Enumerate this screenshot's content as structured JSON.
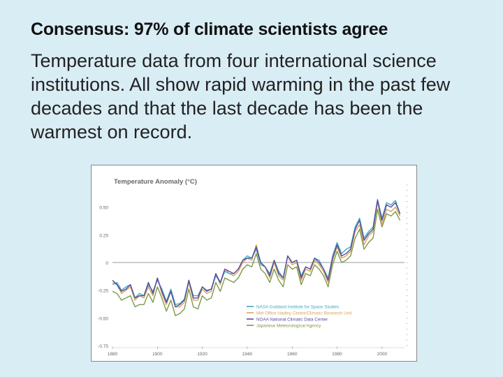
{
  "slide": {
    "title": "Consensus: 97% of climate scientists agree",
    "body": "Temperature data from four international science institutions. All show rapid warming in the past few decades and that the last decade has been the warmest on record."
  },
  "colors": {
    "background": "#d9edf5",
    "nasa": "#3fa9c4",
    "hadley": "#d9a35a",
    "noaa": "#5b4a9e",
    "jma": "#7a9a4a"
  },
  "chart_data": {
    "type": "line",
    "title": "Temperature Anomaly (°C)",
    "xlabel": "",
    "ylabel": "",
    "xlim": [
      1880,
      2010
    ],
    "ylim": [
      -0.75,
      0.75
    ],
    "xticks": [
      1880,
      1900,
      1920,
      1940,
      1960,
      1980,
      2000
    ],
    "yticks": [
      0.5,
      0.25,
      0,
      -0.25,
      -0.5,
      -0.75
    ],
    "ytick_labels": [
      "0.50",
      "0.25",
      "0",
      "-0.25",
      "-0.50",
      "-0.75"
    ],
    "legend_position": "bottom-right",
    "x": [
      1880,
      1882,
      1884,
      1886,
      1888,
      1890,
      1892,
      1894,
      1896,
      1898,
      1900,
      1902,
      1904,
      1906,
      1908,
      1910,
      1912,
      1914,
      1916,
      1918,
      1920,
      1922,
      1924,
      1926,
      1928,
      1930,
      1932,
      1934,
      1936,
      1938,
      1940,
      1942,
      1944,
      1946,
      1948,
      1950,
      1952,
      1954,
      1956,
      1958,
      1960,
      1962,
      1964,
      1966,
      1968,
      1970,
      1972,
      1974,
      1976,
      1978,
      1980,
      1982,
      1984,
      1986,
      1988,
      1990,
      1992,
      1994,
      1996,
      1998,
      2000,
      2002,
      2004,
      2006,
      2008
    ],
    "series": [
      {
        "name": "NASA Goddard Institute for Space Studies",
        "values": [
          -0.2,
          -0.18,
          -0.25,
          -0.22,
          -0.2,
          -0.32,
          -0.28,
          -0.3,
          -0.2,
          -0.26,
          -0.16,
          -0.24,
          -0.35,
          -0.24,
          -0.38,
          -0.37,
          -0.33,
          -0.16,
          -0.3,
          -0.3,
          -0.22,
          -0.25,
          -0.24,
          -0.12,
          -0.18,
          -0.08,
          -0.1,
          -0.1,
          -0.06,
          0.02,
          0.06,
          0.04,
          0.12,
          -0.02,
          -0.04,
          -0.1,
          0.02,
          -0.08,
          -0.14,
          0.06,
          0.0,
          0.02,
          -0.12,
          -0.04,
          -0.06,
          0.04,
          0.02,
          -0.06,
          -0.14,
          0.06,
          0.18,
          0.08,
          0.12,
          0.14,
          0.32,
          0.4,
          0.22,
          0.28,
          0.32,
          0.57,
          0.4,
          0.54,
          0.52,
          0.56,
          0.44
        ]
      },
      {
        "name": "Met Office Hadley Centre/Climatic Research Unit",
        "values": [
          -0.18,
          -0.2,
          -0.28,
          -0.25,
          -0.22,
          -0.34,
          -0.3,
          -0.32,
          -0.22,
          -0.3,
          -0.14,
          -0.28,
          -0.38,
          -0.26,
          -0.4,
          -0.4,
          -0.36,
          -0.18,
          -0.34,
          -0.34,
          -0.24,
          -0.28,
          -0.26,
          -0.1,
          -0.2,
          -0.06,
          -0.1,
          -0.12,
          -0.08,
          0.0,
          0.04,
          0.02,
          0.16,
          0.0,
          -0.04,
          -0.14,
          0.0,
          -0.12,
          -0.16,
          0.06,
          -0.02,
          0.0,
          -0.16,
          -0.06,
          -0.08,
          0.02,
          -0.02,
          -0.08,
          -0.18,
          0.02,
          0.14,
          0.04,
          0.06,
          0.1,
          0.28,
          0.34,
          0.16,
          0.24,
          0.28,
          0.55,
          0.34,
          0.48,
          0.46,
          0.5,
          0.42
        ]
      },
      {
        "name": "NOAA National Climatic Data Center",
        "values": [
          -0.16,
          -0.2,
          -0.26,
          -0.24,
          -0.2,
          -0.32,
          -0.3,
          -0.3,
          -0.18,
          -0.28,
          -0.14,
          -0.26,
          -0.36,
          -0.26,
          -0.4,
          -0.38,
          -0.34,
          -0.16,
          -0.32,
          -0.32,
          -0.22,
          -0.26,
          -0.24,
          -0.1,
          -0.18,
          -0.06,
          -0.08,
          -0.1,
          -0.06,
          0.02,
          0.04,
          0.04,
          0.14,
          0.0,
          -0.04,
          -0.12,
          0.02,
          -0.1,
          -0.14,
          0.06,
          0.0,
          0.02,
          -0.14,
          -0.04,
          -0.06,
          0.04,
          0.0,
          -0.06,
          -0.16,
          0.04,
          0.16,
          0.06,
          0.08,
          0.12,
          0.3,
          0.38,
          0.2,
          0.26,
          0.3,
          0.56,
          0.38,
          0.52,
          0.5,
          0.54,
          0.44
        ]
      },
      {
        "name": "Japanese Meteorological Agency",
        "values": [
          -0.26,
          -0.28,
          -0.34,
          -0.32,
          -0.3,
          -0.4,
          -0.38,
          -0.38,
          -0.28,
          -0.36,
          -0.22,
          -0.32,
          -0.44,
          -0.34,
          -0.48,
          -0.46,
          -0.42,
          -0.24,
          -0.4,
          -0.42,
          -0.3,
          -0.34,
          -0.32,
          -0.18,
          -0.26,
          -0.14,
          -0.16,
          -0.18,
          -0.14,
          -0.06,
          -0.02,
          -0.04,
          0.08,
          -0.06,
          -0.1,
          -0.18,
          -0.06,
          -0.16,
          -0.22,
          -0.02,
          -0.06,
          -0.04,
          -0.2,
          -0.1,
          -0.12,
          -0.02,
          -0.06,
          -0.12,
          -0.22,
          -0.02,
          0.1,
          0.0,
          0.02,
          0.06,
          0.22,
          0.3,
          0.12,
          0.18,
          0.22,
          0.48,
          0.32,
          0.44,
          0.42,
          0.46,
          0.38
        ]
      }
    ]
  }
}
